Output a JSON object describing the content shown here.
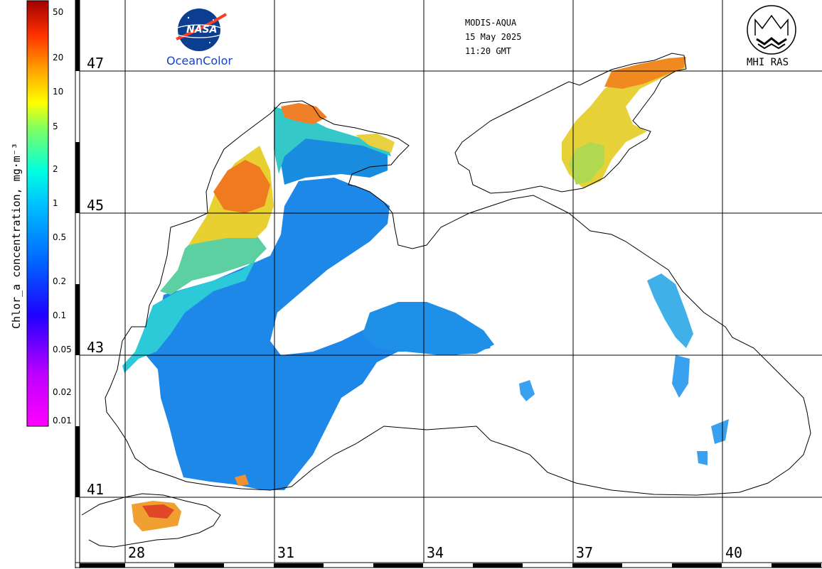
{
  "header": {
    "sensor": "MODIS-AQUA",
    "date": "15 May 2025",
    "time": "11:20 GMT"
  },
  "logos": {
    "nasa_wordmark": "NASA",
    "nasa_caption": "OceanColor",
    "mhi_caption": "MHI RAS"
  },
  "colorbar": {
    "title": "Chlor_a concentration, mg·m⁻³",
    "ticks": [
      "50",
      "20",
      "10",
      "5",
      "2",
      "1",
      "0.5",
      "0.2",
      "0.1",
      "0.05",
      "0.02",
      "0.01"
    ],
    "scale": "log",
    "range": [
      0.01,
      50
    ],
    "colors": [
      "#ff00ff",
      "#8000ff",
      "#0000ff",
      "#0080ff",
      "#00ffff",
      "#00ff80",
      "#ffff00",
      "#ff8000",
      "#ff0000",
      "#800000"
    ]
  },
  "grid": {
    "latitudes": [
      "47",
      "45",
      "43",
      "41"
    ],
    "longitudes": [
      "28",
      "31",
      "34",
      "37",
      "40"
    ]
  },
  "palette": {
    "land": "#ffffff",
    "coast": "#000000",
    "grid": "#000000"
  }
}
